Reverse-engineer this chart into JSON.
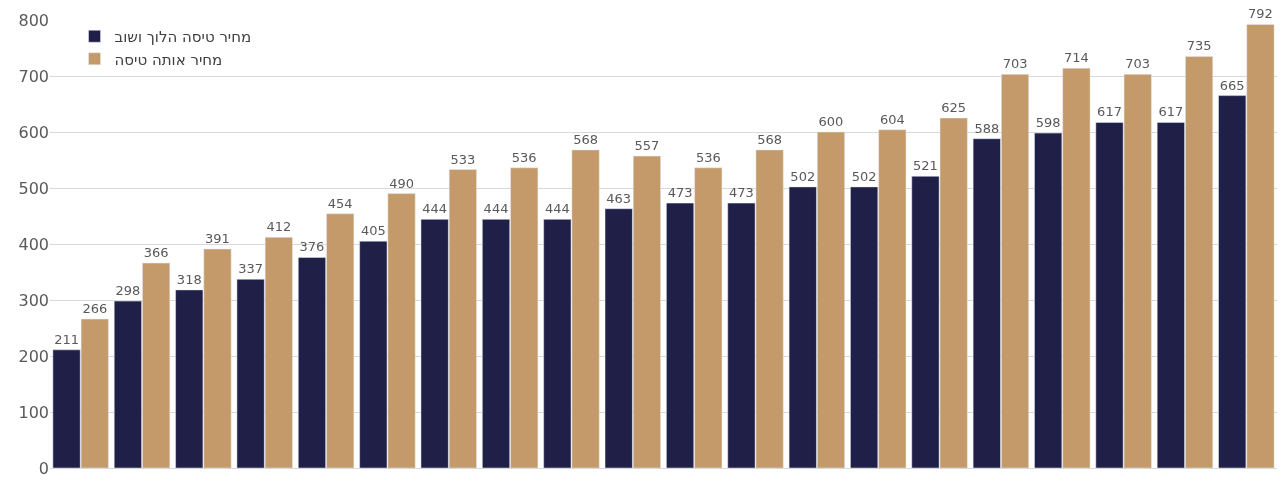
{
  "chart_data": {
    "type": "bar",
    "categories": [
      null,
      null,
      null,
      null,
      null,
      null,
      null,
      null,
      null,
      null,
      null,
      null,
      null,
      null,
      null,
      null,
      null,
      null,
      null,
      null
    ],
    "series": [
      {
        "name": "מחיר טיסה הלוך ושוב",
        "color": "#1f1f47",
        "values": [
          211,
          298,
          318,
          337,
          376,
          405,
          444,
          444,
          444,
          463,
          473,
          473,
          502,
          502,
          521,
          588,
          598,
          617,
          617,
          665
        ]
      },
      {
        "name": "מחיר אותה טיסה",
        "color": "#c49a6a",
        "values": [
          266,
          366,
          391,
          412,
          454,
          490,
          533,
          536,
          568,
          557,
          536,
          568,
          600,
          604,
          625,
          703,
          714,
          703,
          735,
          792
        ]
      }
    ],
    "ylim": [
      0,
      800
    ],
    "yticks": [
      0,
      100,
      200,
      300,
      400,
      500,
      600,
      700,
      800
    ],
    "grid": "y",
    "legend": "top left",
    "data_labels": true
  }
}
